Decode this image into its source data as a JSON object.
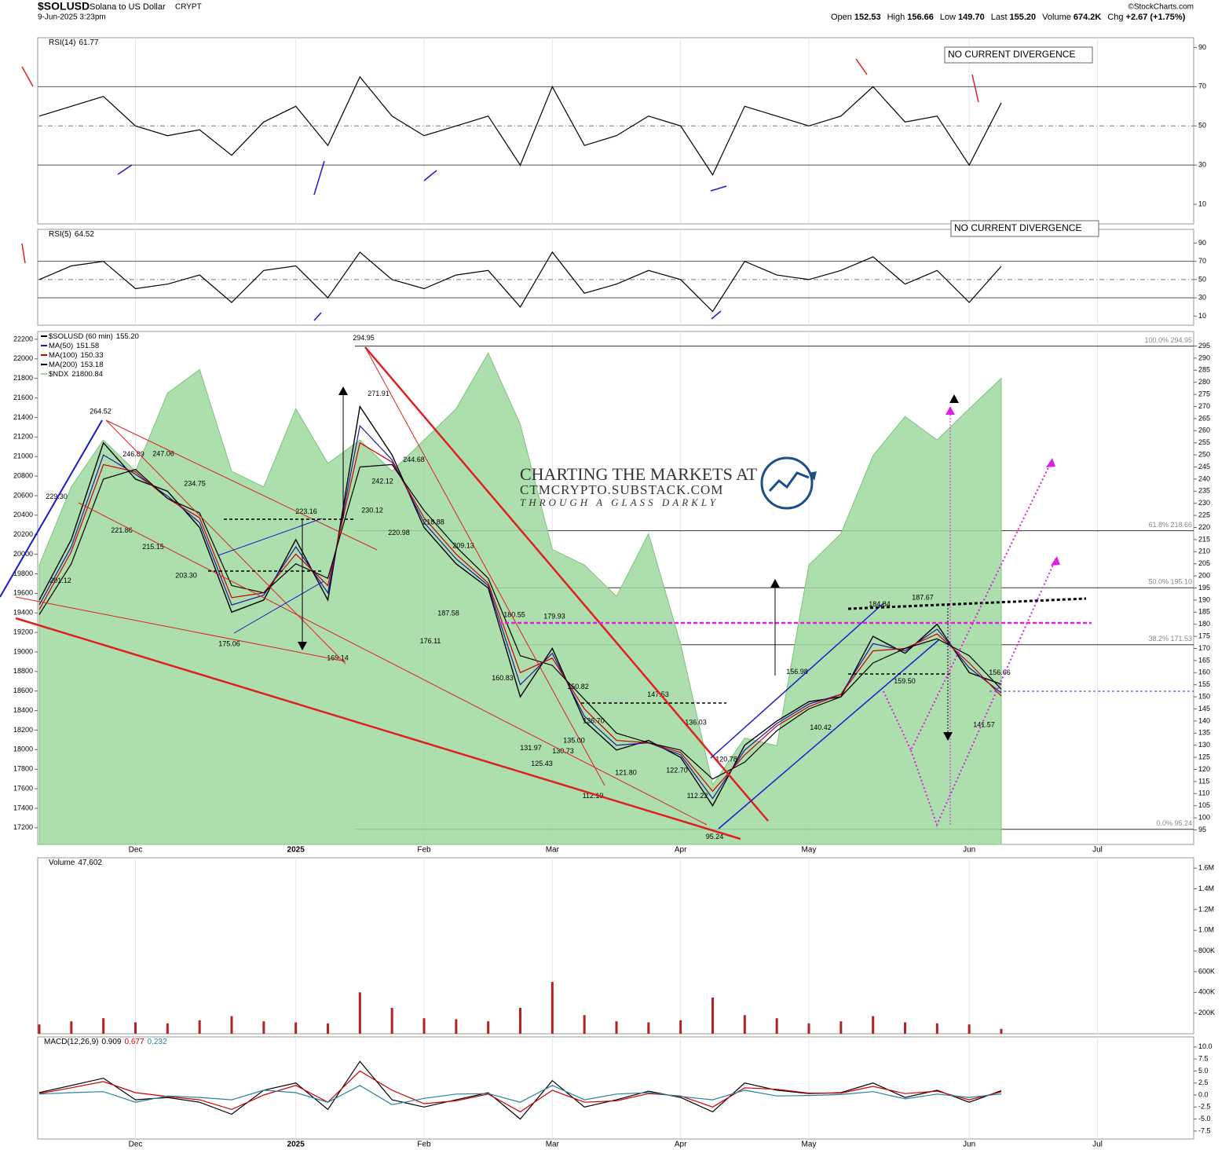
{
  "header": {
    "symbol": "$SOLUSD",
    "name": "Solana to US Dollar",
    "exchange": "CRYPT",
    "timestamp": "9-Jun-2025 3:23pm",
    "quote": [
      {
        "label": "Open",
        "value": "152.53"
      },
      {
        "label": "High",
        "value": "156.66"
      },
      {
        "label": "Low",
        "value": "149.70"
      },
      {
        "label": "Last",
        "value": "155.20"
      },
      {
        "label": "Volume",
        "value": "674.2K"
      },
      {
        "label": "Chg",
        "value": "+2.67 (+1.75%)"
      }
    ],
    "copyright": "©StockCharts.com"
  },
  "watermark": {
    "line1": "CHARTING THE MARKETS AT",
    "line2": "CTMCRYPTO.SUBSTACK.COM",
    "line3": "THROUGH A GLASS DARKLY"
  },
  "chart_data": [
    {
      "type": "line",
      "ylim": [
        0,
        95
      ],
      "yticks": [
        10,
        30,
        50,
        70,
        90
      ],
      "bands": [
        30,
        70
      ],
      "midline": 50,
      "annotation": "NO CURRENT DIVERGENCE",
      "series": [
        {
          "name": "RSI(14)",
          "color": "#000000",
          "values": [
            55,
            60,
            65,
            50,
            45,
            48,
            35,
            52,
            60,
            40,
            75,
            55,
            45,
            50,
            55,
            30,
            70,
            40,
            45,
            55,
            50,
            25,
            60,
            55,
            50,
            55,
            70,
            52,
            55,
            30,
            61.77,
            null,
            null,
            null,
            null,
            null,
            null
          ]
        }
      ]
    },
    {
      "type": "line",
      "ylim": [
        0,
        105
      ],
      "yticks": [
        10,
        30,
        50,
        70,
        90
      ],
      "bands": [
        30,
        70
      ],
      "midline": 50,
      "annotation": "NO CURRENT DIVERGENCE",
      "series": [
        {
          "name": "RSI(5)",
          "color": "#000000",
          "values": [
            50,
            65,
            70,
            40,
            45,
            55,
            25,
            60,
            65,
            30,
            80,
            50,
            40,
            55,
            60,
            20,
            80,
            35,
            45,
            60,
            50,
            15,
            70,
            55,
            50,
            60,
            75,
            45,
            60,
            25,
            64.52,
            null,
            null,
            null,
            null,
            null,
            null
          ]
        }
      ]
    },
    {
      "type": "line",
      "categories": [
        null,
        null,
        null,
        "Dec",
        null,
        null,
        null,
        null,
        "2025",
        null,
        null,
        null,
        "Feb",
        null,
        null,
        null,
        "Mar",
        null,
        null,
        null,
        "Apr",
        null,
        null,
        null,
        "May",
        null,
        null,
        null,
        null,
        "Jun",
        null,
        null,
        null,
        "Jul",
        null,
        null,
        null
      ],
      "ylim": [
        89,
        301
      ],
      "yticks": [
        95,
        100,
        105,
        110,
        115,
        120,
        125,
        130,
        135,
        140,
        145,
        150,
        155,
        160,
        165,
        170,
        175,
        180,
        185,
        190,
        195,
        200,
        205,
        210,
        215,
        220,
        225,
        230,
        235,
        240,
        245,
        250,
        255,
        260,
        265,
        270,
        275,
        280,
        285,
        290,
        295
      ],
      "y2lim": [
        17030,
        22280
      ],
      "y2ticks": [
        17200,
        17400,
        17600,
        17800,
        18000,
        18200,
        18400,
        18600,
        18800,
        19000,
        19200,
        19400,
        19600,
        19800,
        20000,
        20200,
        20400,
        20600,
        20800,
        21000,
        21200,
        21400,
        21600,
        21800,
        22000,
        22200
      ],
      "series": [
        {
          "name": "$SOLUSD (60 min)",
          "last_label": "155.20",
          "color": "#000000",
          "values": [
            190,
            215,
            255,
            240,
            235,
            220,
            185,
            190,
            215,
            190,
            270,
            250,
            220,
            205,
            195,
            150,
            170,
            140,
            128,
            132,
            125,
            105,
            130,
            140,
            148,
            150,
            175,
            168,
            180,
            160,
            155.2,
            null,
            null,
            null,
            null,
            null,
            null
          ]
        },
        {
          "name": "MA(50)",
          "color": "#1a1aa6",
          "values": [
            188,
            212,
            250,
            242,
            233,
            222,
            188,
            192,
            212,
            193,
            262,
            248,
            222,
            207,
            196,
            155,
            168,
            142,
            130,
            131,
            126,
            108,
            128,
            139,
            147,
            151,
            172,
            169,
            178,
            162,
            151.58,
            null,
            null,
            null,
            null,
            null,
            null
          ]
        },
        {
          "name": "MA(100)",
          "color": "#cc0000",
          "values": [
            186,
            210,
            246,
            243,
            232,
            224,
            191,
            193,
            209,
            196,
            255,
            247,
            224,
            209,
            197,
            160,
            166,
            145,
            132,
            131,
            127,
            111,
            126,
            138,
            146,
            151,
            169,
            170,
            176,
            164,
            150.33,
            null,
            null,
            null,
            null,
            null,
            null
          ]
        },
        {
          "name": "MA(200)",
          "color": "#000000",
          "values": [
            184,
            205,
            240,
            244,
            232,
            226,
            196,
            193,
            205,
            199,
            245,
            246,
            227,
            212,
            199,
            167,
            163,
            149,
            135,
            131,
            128,
            116,
            123,
            136,
            145,
            150,
            164,
            170,
            174,
            167,
            153.18,
            null,
            null,
            null,
            null,
            null,
            null
          ]
        },
        {
          "name": "$NDX",
          "color": "#9fd89f",
          "axis": "y2",
          "area": true,
          "values": [
            19890,
            20690,
            21170,
            20850,
            21650,
            21890,
            20850,
            20690,
            21490,
            20930,
            21170,
            20850,
            21170,
            21490,
            22060,
            21330,
            20050,
            19890,
            19570,
            20210,
            19080,
            17640,
            18120,
            18040,
            19890,
            20210,
            21010,
            21410,
            21170,
            21490,
            21800.84,
            null,
            null,
            null,
            null,
            null,
            null
          ]
        }
      ],
      "fib_levels": [
        {
          "text": "100.0% 294.95",
          "value": 294.95
        },
        {
          "text": "61.8% 218.66",
          "value": 218.66
        },
        {
          "text": "50.0% 195.10",
          "value": 195.1
        },
        {
          "text": "38.2% 171.53",
          "value": 171.53
        },
        {
          "text": "0.0% 95.24",
          "value": 95.24
        }
      ],
      "price_labels": [
        264.52,
        246.89,
        247.06,
        234.75,
        {
          "value": 229.3,
          "label": "229.30"
        },
        221.86,
        215.15,
        {
          "value": 203.3,
          "label": "203.30"
        },
        201.12,
        223.16,
        175.06,
        169.14,
        294.95,
        271.91,
        242.12,
        230.12,
        220.98,
        244.68,
        218.88,
        209.13,
        187.58,
        176.11,
        180.55,
        179.93,
        160.83,
        131.97,
        125.43,
        150.82,
        {
          "value": 135,
          "label": "135.00"
        },
        130.73,
        {
          "value": 136.7,
          "label": "136.70"
        },
        {
          "value": 121.8,
          "label": "121.80"
        },
        112.19,
        147.53,
        136.03,
        {
          "value": 122.7,
          "label": "122.70"
        },
        112.22,
        120.78,
        95.24,
        156.98,
        140.42,
        184.84,
        187.67,
        {
          "value": 159.5,
          "label": "159.50"
        },
        156.66,
        141.57
      ]
    },
    {
      "type": "bar",
      "ylim": [
        0,
        1700000
      ],
      "yticks": [
        {
          "value": 200000,
          "label": "200K"
        },
        {
          "value": 400000,
          "label": "400K"
        },
        {
          "value": 600000,
          "label": "600K"
        },
        {
          "value": 800000,
          "label": "800K"
        },
        {
          "value": 1000000,
          "label": "1.0M"
        },
        {
          "value": 1200000,
          "label": "1.2M"
        },
        {
          "value": 1400000,
          "label": "1.4M"
        },
        {
          "value": 1600000,
          "label": "1.6M"
        }
      ],
      "series": [
        {
          "name": "Volume",
          "last_label": "47,602",
          "color": "#b22222",
          "values": [
            90000,
            120000,
            150000,
            110000,
            100000,
            130000,
            170000,
            120000,
            110000,
            100000,
            400000,
            250000,
            150000,
            140000,
            120000,
            250000,
            500000,
            180000,
            120000,
            110000,
            130000,
            350000,
            180000,
            150000,
            100000,
            120000,
            170000,
            110000,
            100000,
            90000,
            47602,
            null,
            null,
            null,
            null,
            null,
            null
          ]
        }
      ]
    },
    {
      "type": "line",
      "categories": [
        null,
        null,
        null,
        "Dec",
        null,
        null,
        null,
        null,
        "2025",
        null,
        null,
        null,
        "Feb",
        null,
        null,
        null,
        "Mar",
        null,
        null,
        null,
        "Apr",
        null,
        null,
        null,
        "May",
        null,
        null,
        null,
        null,
        "Jun",
        null,
        null,
        null,
        "Jul",
        null,
        null,
        null
      ],
      "ylim": [
        -9.15,
        12.1
      ],
      "yticks": [
        {
          "value": -7.5,
          "label": "-7.5"
        },
        {
          "value": -5,
          "label": "-5.0"
        },
        -2.5,
        {
          "value": 0,
          "label": "0.0"
        },
        2.5,
        {
          "value": 5,
          "label": "5.0"
        },
        7.5,
        {
          "value": 10,
          "label": "10.0"
        }
      ],
      "series": [
        {
          "name": "MACD(12,26,9)",
          "color": "#000000",
          "values": [
            0.5,
            2.0,
            3.5,
            -1.0,
            -0.5,
            -1.5,
            -4.0,
            1.0,
            2.5,
            -3.0,
            7.0,
            -1.0,
            -2.5,
            -1.0,
            0.5,
            -5.0,
            3.0,
            -2.5,
            -1.0,
            0.8,
            -0.5,
            -3.5,
            2.5,
            1.0,
            0.3,
            0.5,
            2.5,
            -0.5,
            1.0,
            -1.5,
            0.909,
            null,
            null,
            null,
            null,
            null,
            null
          ]
        },
        {
          "color": "#cc0000",
          "values": [
            0.3,
            1.5,
            2.8,
            0.5,
            -0.3,
            -1.0,
            -3.0,
            0.0,
            2.0,
            -1.5,
            5.0,
            1.0,
            -1.8,
            -1.2,
            0.2,
            -3.5,
            1.0,
            -1.5,
            -1.2,
            0.3,
            -0.2,
            -2.5,
            1.5,
            1.2,
            0.4,
            0.4,
            1.8,
            0.3,
            0.8,
            -1.0,
            0.677,
            null,
            null,
            null,
            null,
            null,
            null
          ]
        },
        {
          "color": "#2a7fa0",
          "values": [
            0.2,
            0.5,
            0.7,
            -1.5,
            -0.2,
            -0.5,
            -1.0,
            1.0,
            0.5,
            -1.5,
            2.0,
            -2.0,
            -0.7,
            0.2,
            0.3,
            -1.5,
            2.0,
            -1.0,
            0.2,
            0.5,
            -0.3,
            -1.0,
            1.0,
            -0.2,
            -0.1,
            0.1,
            0.7,
            -0.8,
            0.2,
            -0.5,
            0.232,
            null,
            null,
            null,
            null,
            null,
            null
          ]
        }
      ]
    }
  ]
}
